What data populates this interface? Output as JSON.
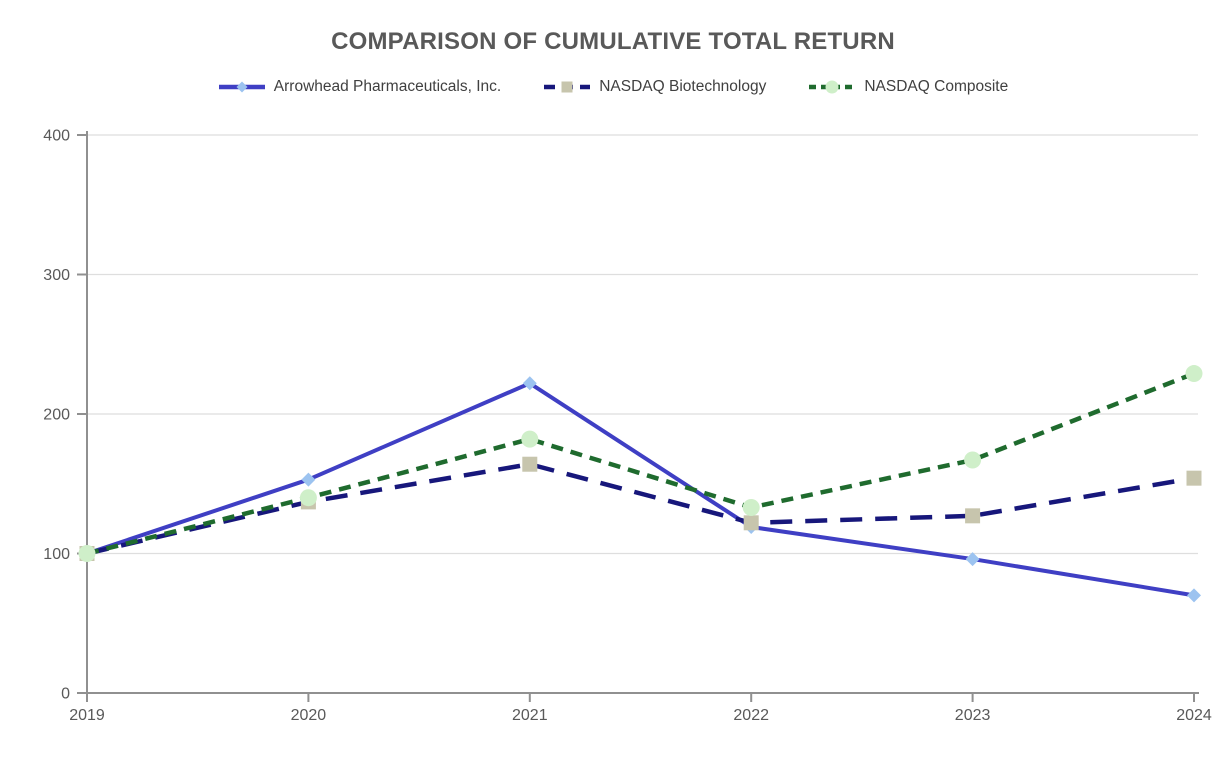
{
  "chart_data": {
    "type": "line",
    "title": "COMPARISON OF CUMULATIVE TOTAL RETURN",
    "categories": [
      "2019",
      "2020",
      "2021",
      "2022",
      "2023",
      "2024"
    ],
    "series": [
      {
        "name": "Arrowhead Pharmaceuticals, Inc.",
        "values": [
          100,
          153,
          222,
          119,
          96,
          70
        ],
        "line_color": "#3F3FC4",
        "line_style": "solid",
        "marker": "diamond",
        "marker_color": "#9CC3F0"
      },
      {
        "name": "NASDAQ Biotechnology",
        "values": [
          100,
          137,
          164,
          122,
          127,
          154
        ],
        "line_color": "#17177B",
        "line_style": "long-dash",
        "marker": "square",
        "marker_color": "#C7C5AD"
      },
      {
        "name": "NASDAQ Composite",
        "values": [
          100,
          140,
          182,
          133,
          167,
          229
        ],
        "line_color": "#1F6B2E",
        "line_style": "dash",
        "marker": "circle",
        "marker_color": "#CFEFC9"
      }
    ],
    "ylim": [
      0,
      400
    ],
    "yticks": [
      0,
      100,
      200,
      300,
      400
    ],
    "grid": "horizontal",
    "legend_position": "top",
    "title_color": "#595959",
    "tick_label_color": "#595959",
    "legend_text_color": "#404040",
    "axis_color": "#909090",
    "grid_color": "#DEDEDE"
  }
}
